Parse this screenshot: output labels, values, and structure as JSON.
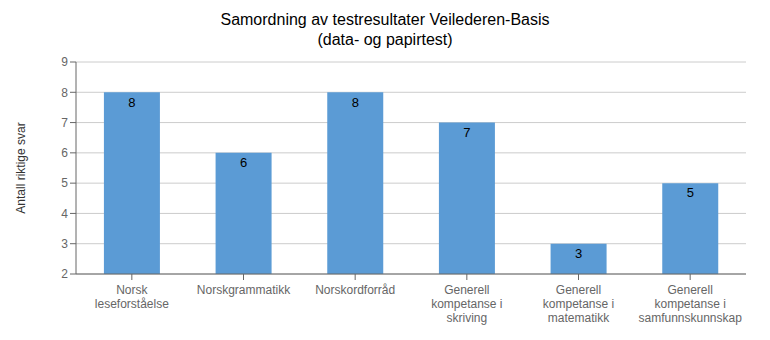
{
  "chart_data": {
    "type": "bar",
    "title": "Samordning av testresultater Veilederen-Basis\n(data- og papirtest)",
    "categories": [
      "Norsk\nleseforståelse",
      "Norskgrammatikk",
      "Norskordforråd",
      "Generell\nkompetanse i\nskriving",
      "Generell\nkompetanse i\nmatematikk",
      "Generell\nkompetanse i\nsamfunnskunnskap"
    ],
    "values": [
      8,
      6,
      8,
      7,
      3,
      5
    ],
    "color": "#5b9bd5",
    "ylabel": "Antall riktige svar",
    "ylim": [
      2,
      9
    ],
    "yticks": [
      2,
      3,
      4,
      5,
      6,
      7,
      8,
      9
    ],
    "grid": true,
    "data_labels": true
  }
}
